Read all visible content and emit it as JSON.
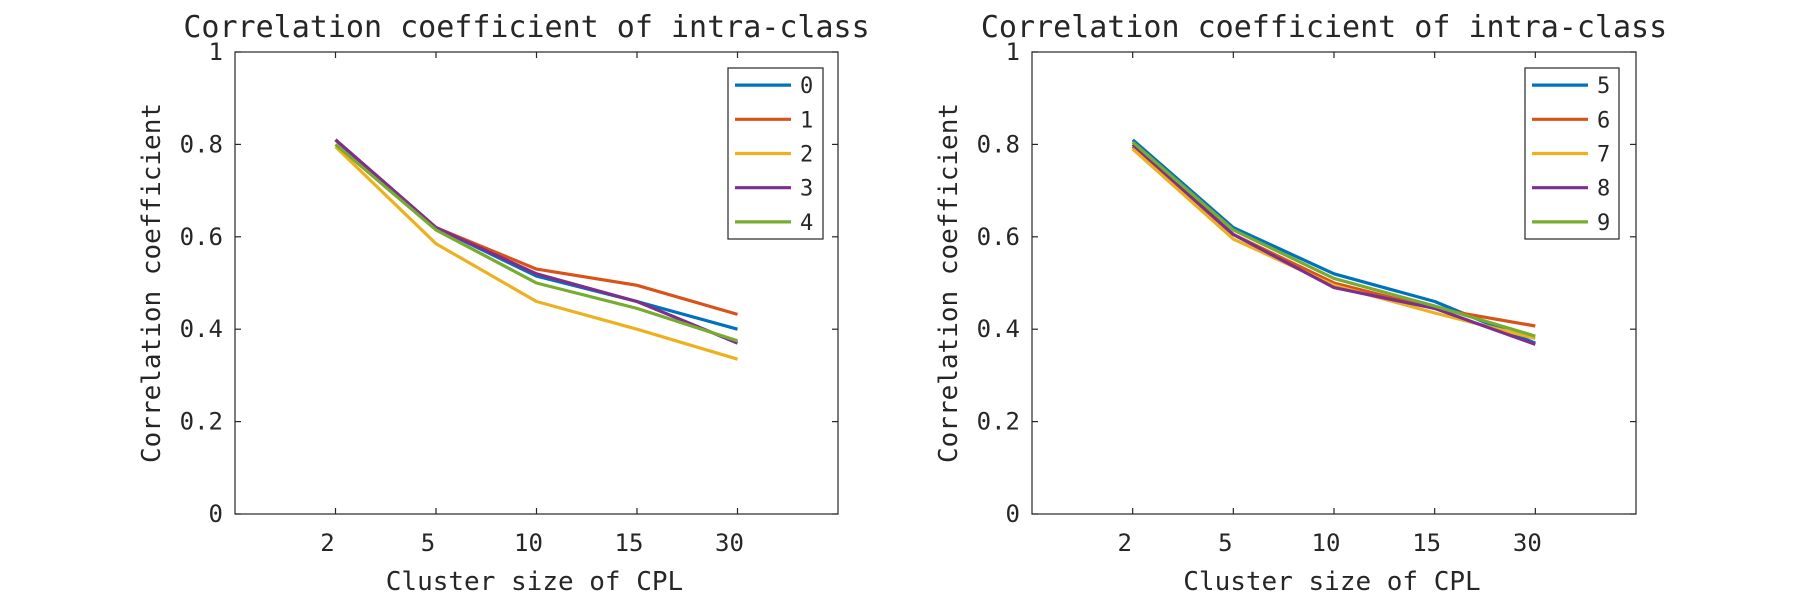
{
  "chart_data": [
    {
      "type": "line",
      "title": "Correlation coefficient of intra-class",
      "xlabel": "Cluster size of CPL",
      "ylabel": "Correlation coefficient",
      "categories": [
        "2",
        "5",
        "10",
        "15",
        "30"
      ],
      "ylim": [
        0,
        1
      ],
      "yticks": [
        "0",
        "0.2",
        "0.4",
        "0.6",
        "0.8",
        "1"
      ],
      "legend_position": "top-right",
      "grid": false,
      "series": [
        {
          "name": "0",
          "color": "#0072BD",
          "values": [
            0.81,
            0.62,
            0.515,
            0.46,
            0.4
          ]
        },
        {
          "name": "1",
          "color": "#D95319",
          "values": [
            0.81,
            0.62,
            0.53,
            0.495,
            0.432
          ]
        },
        {
          "name": "2",
          "color": "#EDB120",
          "values": [
            0.795,
            0.585,
            0.46,
            0.4,
            0.335
          ]
        },
        {
          "name": "3",
          "color": "#7E2F8E",
          "values": [
            0.81,
            0.62,
            0.52,
            0.46,
            0.37
          ]
        },
        {
          "name": "4",
          "color": "#77AC30",
          "values": [
            0.8,
            0.615,
            0.5,
            0.445,
            0.375
          ]
        }
      ]
    },
    {
      "type": "line",
      "title": "Correlation coefficient of intra-class",
      "xlabel": "Cluster size of CPL",
      "ylabel": "Correlation coefficient",
      "categories": [
        "2",
        "5",
        "10",
        "15",
        "30"
      ],
      "ylim": [
        0,
        1
      ],
      "yticks": [
        "0",
        "0.2",
        "0.4",
        "0.6",
        "0.8",
        "1"
      ],
      "legend_position": "top-right",
      "grid": false,
      "series": [
        {
          "name": "5",
          "color": "#0072BD",
          "values": [
            0.81,
            0.62,
            0.52,
            0.46,
            0.37
          ]
        },
        {
          "name": "6",
          "color": "#D95319",
          "values": [
            0.795,
            0.605,
            0.5,
            0.445,
            0.407
          ]
        },
        {
          "name": "7",
          "color": "#EDB120",
          "values": [
            0.79,
            0.595,
            0.495,
            0.435,
            0.38
          ]
        },
        {
          "name": "8",
          "color": "#7E2F8E",
          "values": [
            0.8,
            0.605,
            0.49,
            0.445,
            0.367
          ]
        },
        {
          "name": "9",
          "color": "#77AC30",
          "values": [
            0.805,
            0.615,
            0.51,
            0.45,
            0.385
          ]
        }
      ]
    }
  ]
}
